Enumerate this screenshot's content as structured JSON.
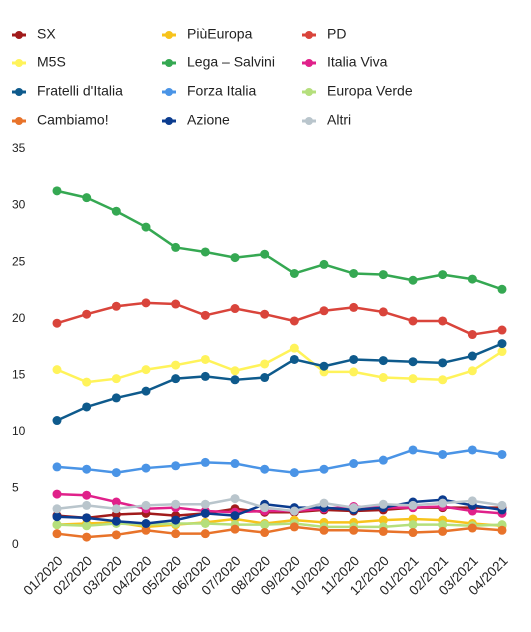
{
  "chart_data": {
    "type": "line",
    "categories": [
      "01/2020",
      "02/2020",
      "03/2020",
      "04/2020",
      "05/2020",
      "06/2020",
      "07/2020",
      "08/2020",
      "09/2020",
      "10/2020",
      "11/2020",
      "12/2020",
      "01/2021",
      "02/2021",
      "03/2021",
      "04/2021"
    ],
    "series": [
      {
        "name": "SX",
        "color": "#a11b1b",
        "values": [
          2.6,
          2.4,
          2.7,
          2.8,
          2.6,
          2.8,
          3.2,
          2.9,
          2.9,
          3.1,
          3.0,
          3.1,
          3.3,
          3.3,
          3.3,
          3.3
        ]
      },
      {
        "name": "PiùEuropa",
        "color": "#f7c31c",
        "values": [
          1.8,
          1.9,
          2.0,
          1.6,
          1.8,
          2.0,
          2.3,
          1.9,
          2.2,
          2.0,
          2.0,
          2.2,
          2.3,
          2.2,
          1.9,
          1.7
        ]
      },
      {
        "name": "PD",
        "color": "#d9443b",
        "values": [
          19.6,
          20.4,
          21.1,
          21.4,
          21.3,
          20.3,
          20.9,
          20.4,
          19.8,
          20.7,
          21.0,
          20.6,
          19.8,
          19.8,
          18.6,
          19.0
        ]
      },
      {
        "name": "M5S",
        "color": "#fff35a",
        "values": [
          15.5,
          14.4,
          14.7,
          15.5,
          15.9,
          16.4,
          15.4,
          16.0,
          17.4,
          15.3,
          15.3,
          14.8,
          14.7,
          14.6,
          15.4,
          17.1
        ]
      },
      {
        "name": "Lega – Salvini",
        "color": "#35a852",
        "values": [
          31.3,
          30.7,
          29.5,
          28.1,
          26.3,
          25.9,
          25.4,
          25.7,
          24.0,
          24.8,
          24.0,
          23.9,
          23.4,
          23.9,
          23.5,
          22.6
        ]
      },
      {
        "name": "Italia Viva",
        "color": "#e0218a",
        "values": [
          4.5,
          4.4,
          3.8,
          3.2,
          3.3,
          3.0,
          2.9,
          3.0,
          3.0,
          3.2,
          3.4,
          3.3,
          3.3,
          3.4,
          3.0,
          2.8
        ]
      },
      {
        "name": "Fratelli d'Italia",
        "color": "#0e5a8c",
        "values": [
          11.0,
          12.2,
          13.0,
          13.6,
          14.7,
          14.9,
          14.6,
          14.8,
          16.4,
          15.8,
          16.4,
          16.3,
          16.2,
          16.1,
          16.7,
          17.8
        ]
      },
      {
        "name": "Forza Italia",
        "color": "#4a94e6",
        "values": [
          6.9,
          6.7,
          6.4,
          6.8,
          7.0,
          7.3,
          7.2,
          6.7,
          6.4,
          6.7,
          7.2,
          7.5,
          8.4,
          8.0,
          8.4,
          8.0
        ]
      },
      {
        "name": "Europa Verde",
        "color": "#b5df7c",
        "values": [
          1.8,
          1.7,
          1.9,
          1.8,
          1.9,
          1.9,
          1.8,
          1.8,
          1.9,
          1.6,
          1.6,
          1.6,
          1.8,
          1.8,
          1.7,
          1.8
        ]
      },
      {
        "name": "Cambiamo!",
        "color": "#e8732a",
        "values": [
          1.0,
          0.7,
          0.9,
          1.3,
          1.0,
          1.0,
          1.4,
          1.1,
          1.6,
          1.3,
          1.3,
          1.2,
          1.1,
          1.2,
          1.5,
          1.3
        ]
      },
      {
        "name": "Azione",
        "color": "#0b3c8f",
        "values": [
          2.5,
          2.4,
          2.1,
          1.9,
          2.2,
          2.8,
          2.6,
          3.6,
          3.3,
          3.3,
          3.1,
          3.3,
          3.8,
          4.0,
          3.5,
          3.1
        ]
      },
      {
        "name": "Altri",
        "color": "#b9c5cc",
        "values": [
          3.2,
          3.5,
          3.2,
          3.5,
          3.6,
          3.6,
          4.1,
          3.3,
          3.0,
          3.7,
          3.3,
          3.6,
          3.5,
          3.7,
          3.9,
          3.5
        ]
      }
    ],
    "ylim": [
      0,
      35
    ],
    "yticks": [
      0,
      5,
      10,
      15,
      20,
      25,
      30,
      35
    ],
    "grid": false
  }
}
